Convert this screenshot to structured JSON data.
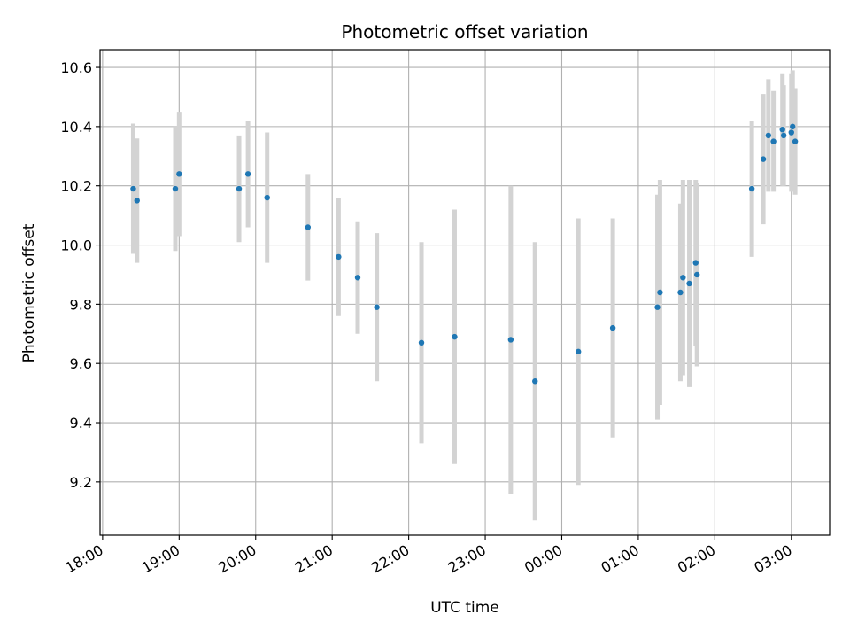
{
  "chart_data": {
    "type": "scatter",
    "title": "Photometric offset variation",
    "xlabel": "UTC time",
    "ylabel": "Photometric offset",
    "grid": true,
    "xlim": [
      "2000-01-01T17:58:00",
      "2000-01-02T03:30:00"
    ],
    "ylim": [
      9.02,
      10.66
    ],
    "x_ticks": [
      "2000-01-01T18:00",
      "2000-01-01T19:00",
      "2000-01-01T20:00",
      "2000-01-01T21:00",
      "2000-01-01T22:00",
      "2000-01-01T23:00",
      "2000-01-02T00:00",
      "2000-01-02T01:00",
      "2000-01-02T02:00",
      "2000-01-02T03:00"
    ],
    "x_tick_labels": [
      "18:00",
      "19:00",
      "20:00",
      "21:00",
      "22:00",
      "23:00",
      "00:00",
      "01:00",
      "02:00",
      "03:00"
    ],
    "y_ticks": [
      9.2,
      9.4,
      9.6,
      9.8,
      10.0,
      10.2,
      10.4,
      10.6
    ],
    "y_tick_labels": [
      "9.2",
      "9.4",
      "9.6",
      "9.8",
      "10.0",
      "10.2",
      "10.4",
      "10.6"
    ],
    "colors": {
      "points": "#1f77b4",
      "errorbars": "#d3d3d3",
      "grid": "#b0b0b0"
    },
    "points": [
      {
        "x": "2000-01-01T18:24",
        "y": 10.19,
        "err": 0.22
      },
      {
        "x": "2000-01-01T18:27",
        "y": 10.15,
        "err": 0.21
      },
      {
        "x": "2000-01-01T18:57",
        "y": 10.19,
        "err": 0.21
      },
      {
        "x": "2000-01-01T19:00",
        "y": 10.24,
        "err": 0.21
      },
      {
        "x": "2000-01-01T19:47",
        "y": 10.19,
        "err": 0.18
      },
      {
        "x": "2000-01-01T19:54",
        "y": 10.24,
        "err": 0.18
      },
      {
        "x": "2000-01-01T20:09",
        "y": 10.16,
        "err": 0.22
      },
      {
        "x": "2000-01-01T20:41",
        "y": 10.06,
        "err": 0.18
      },
      {
        "x": "2000-01-01T21:05",
        "y": 9.96,
        "err": 0.2
      },
      {
        "x": "2000-01-01T21:20",
        "y": 9.89,
        "err": 0.19
      },
      {
        "x": "2000-01-01T21:35",
        "y": 9.79,
        "err": 0.25
      },
      {
        "x": "2000-01-01T22:10",
        "y": 9.67,
        "err": 0.34
      },
      {
        "x": "2000-01-01T22:36",
        "y": 9.69,
        "err": 0.43
      },
      {
        "x": "2000-01-01T23:20",
        "y": 9.68,
        "err": 0.52
      },
      {
        "x": "2000-01-01T23:39",
        "y": 9.54,
        "err": 0.47
      },
      {
        "x": "2000-01-02T00:13",
        "y": 9.64,
        "err": 0.45
      },
      {
        "x": "2000-01-02T00:40",
        "y": 9.72,
        "err": 0.37
      },
      {
        "x": "2000-01-02T01:15",
        "y": 9.79,
        "err": 0.38
      },
      {
        "x": "2000-01-02T01:17",
        "y": 9.84,
        "err": 0.38
      },
      {
        "x": "2000-01-02T01:33",
        "y": 9.84,
        "err": 0.3
      },
      {
        "x": "2000-01-02T01:35",
        "y": 9.89,
        "err": 0.33
      },
      {
        "x": "2000-01-02T01:40",
        "y": 9.87,
        "err": 0.35
      },
      {
        "x": "2000-01-02T01:45",
        "y": 9.94,
        "err": 0.28
      },
      {
        "x": "2000-01-02T01:46",
        "y": 9.9,
        "err": 0.31
      },
      {
        "x": "2000-01-02T02:29",
        "y": 10.19,
        "err": 0.23
      },
      {
        "x": "2000-01-02T02:38",
        "y": 10.29,
        "err": 0.22
      },
      {
        "x": "2000-01-02T02:42",
        "y": 10.37,
        "err": 0.19
      },
      {
        "x": "2000-01-02T02:46",
        "y": 10.35,
        "err": 0.17
      },
      {
        "x": "2000-01-02T02:53",
        "y": 10.39,
        "err": 0.19
      },
      {
        "x": "2000-01-02T02:54",
        "y": 10.37,
        "err": 0.17
      },
      {
        "x": "2000-01-02T03:00",
        "y": 10.38,
        "err": 0.2
      },
      {
        "x": "2000-01-02T03:01",
        "y": 10.4,
        "err": 0.19
      },
      {
        "x": "2000-01-02T03:03",
        "y": 10.35,
        "err": 0.18
      }
    ]
  }
}
